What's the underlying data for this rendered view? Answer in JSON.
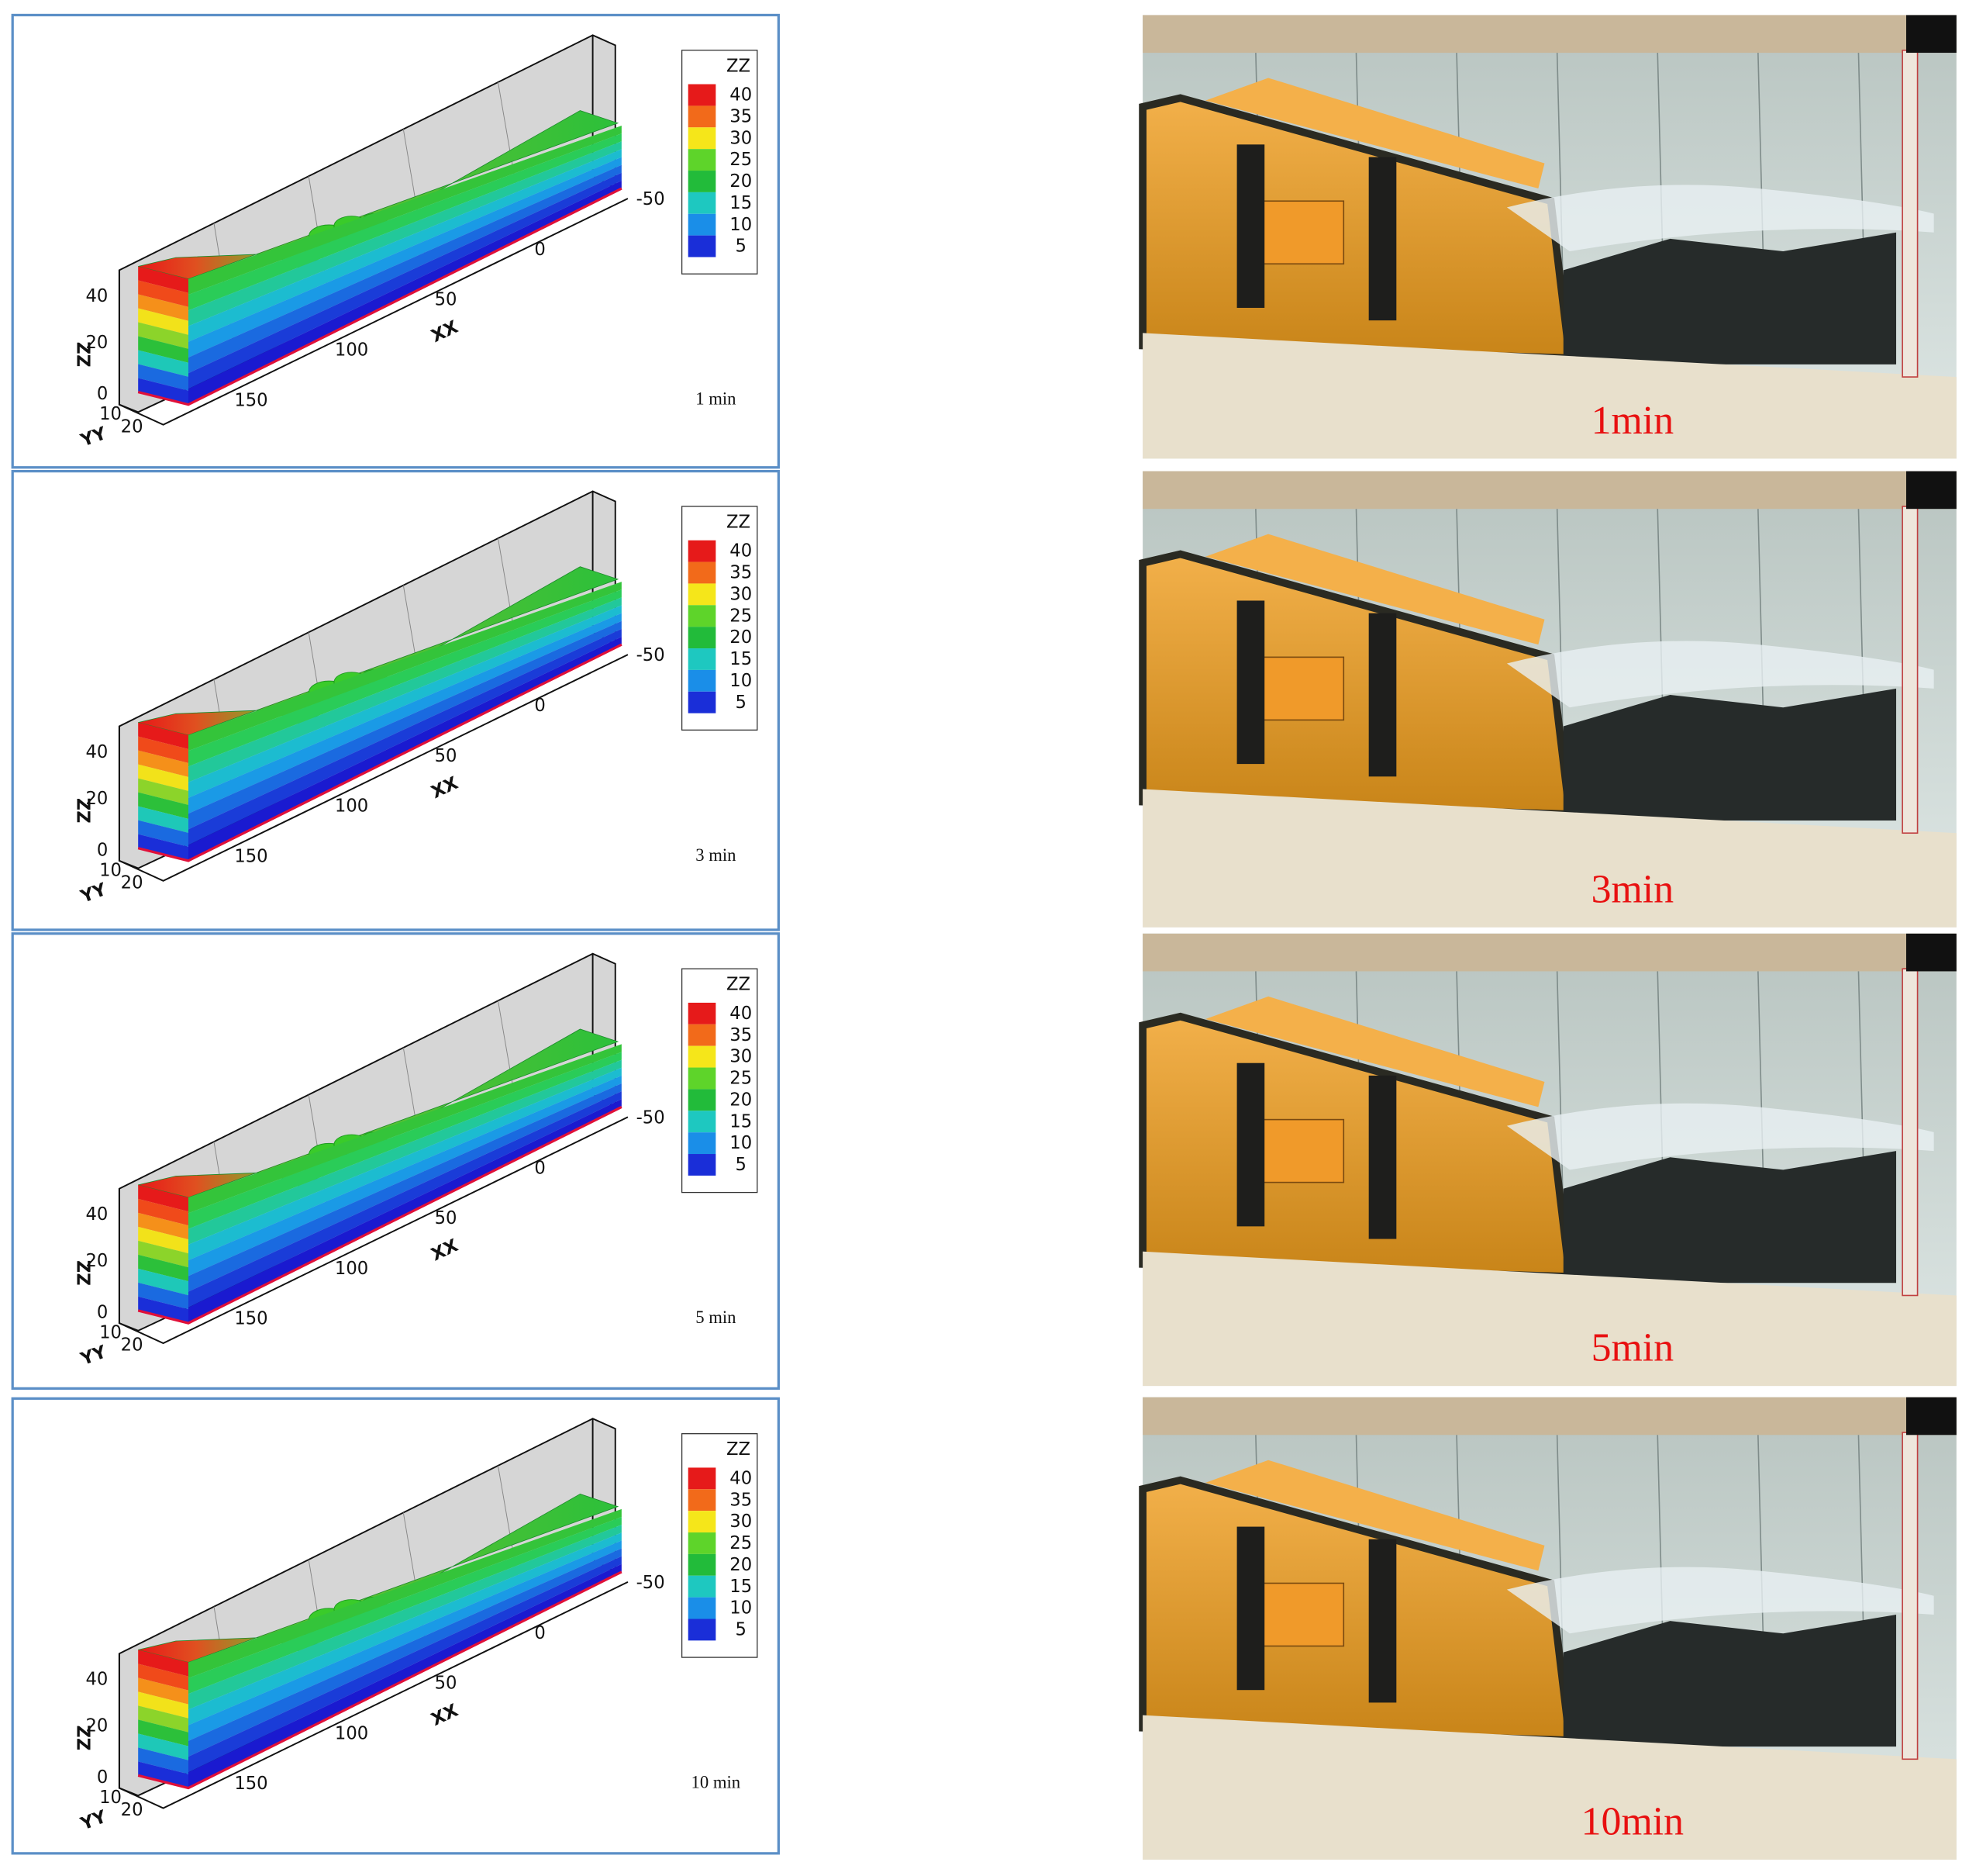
{
  "figure": {
    "simulations": [
      {
        "time": "1 min",
        "legend_title": "ZZ",
        "legend_levels": [
          40,
          35,
          30,
          25,
          20,
          15,
          10,
          5
        ],
        "z_axis_title": "ZZ",
        "z_ticks": [
          40,
          20,
          0
        ],
        "x_axis_title": "XX",
        "x_ticks": [
          -50,
          0,
          50,
          100,
          150
        ],
        "y_axis_title": "YY",
        "y_ticks": [
          10,
          20
        ]
      },
      {
        "time": "3 min",
        "legend_title": "ZZ",
        "legend_levels": [
          40,
          35,
          30,
          25,
          20,
          15,
          10,
          5
        ],
        "z_axis_title": "ZZ",
        "z_ticks": [
          40,
          20,
          0
        ],
        "x_axis_title": "XX",
        "x_ticks": [
          -50,
          0,
          50,
          100,
          150
        ],
        "y_axis_title": "YY",
        "y_ticks": [
          10,
          20
        ]
      },
      {
        "time": "5 min",
        "legend_title": "ZZ",
        "legend_levels": [
          40,
          35,
          30,
          25,
          20,
          15,
          10,
          5
        ],
        "z_axis_title": "ZZ",
        "z_ticks": [
          40,
          20,
          0
        ],
        "x_axis_title": "XX",
        "x_ticks": [
          -50,
          0,
          50,
          100,
          150
        ],
        "y_axis_title": "YY",
        "y_ticks": [
          10,
          20
        ]
      },
      {
        "time": "10 min",
        "legend_title": "ZZ",
        "legend_levels": [
          40,
          35,
          30,
          25,
          20,
          15,
          10,
          5
        ],
        "z_axis_title": "ZZ",
        "z_ticks": [
          40,
          20,
          0
        ],
        "x_axis_title": "XX",
        "x_ticks": [
          -50,
          0,
          50,
          100,
          150
        ],
        "y_axis_title": "YY",
        "y_ticks": [
          10,
          20
        ]
      }
    ],
    "photos": [
      {
        "label": "1min"
      },
      {
        "label": "3min"
      },
      {
        "label": "5min"
      },
      {
        "label": "10min"
      }
    ]
  }
}
